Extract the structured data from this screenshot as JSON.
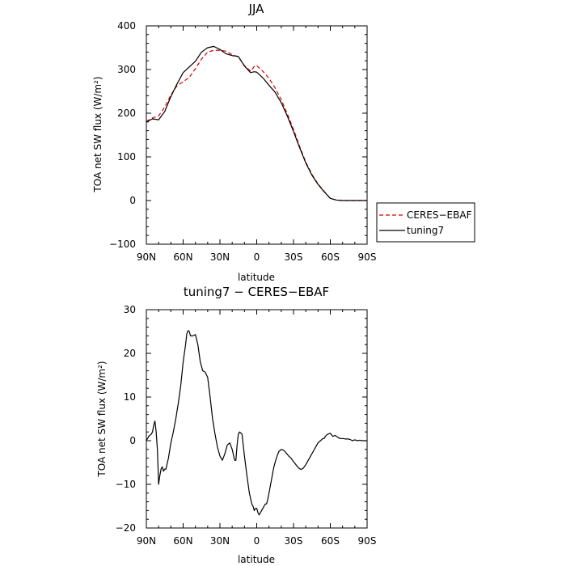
{
  "chart_data": [
    {
      "type": "line",
      "title": "JJA",
      "xlabel": "latitude",
      "ylabel": "TOA net SW flux (W/m²)",
      "xlim": [
        90,
        -90
      ],
      "ylim": [
        -100,
        400
      ],
      "x_ticks": [
        90,
        60,
        30,
        0,
        -30,
        -60,
        -90
      ],
      "x_tick_labels": [
        "90N",
        "60N",
        "30N",
        "0",
        "30S",
        "60S",
        "90S"
      ],
      "y_ticks": [
        -100,
        0,
        100,
        200,
        300,
        400
      ],
      "y_tick_labels": [
        "−100",
        "0",
        "100",
        "200",
        "300",
        "400"
      ],
      "legend": "outside-right",
      "series": [
        {
          "name": "CERES−EBAF",
          "color": "#dd0000",
          "dash": "dashed",
          "x": [
            90,
            85,
            80,
            75,
            70,
            65,
            60,
            55,
            50,
            45,
            40,
            35,
            30,
            25,
            20,
            15,
            10,
            5,
            2,
            0,
            -5,
            -10,
            -15,
            -20,
            -25,
            -30,
            -35,
            -40,
            -45,
            -50,
            -55,
            -60,
            -65,
            -70,
            -75,
            -80,
            -85,
            -90
          ],
          "y": [
            181,
            189,
            194,
            214,
            242,
            263,
            272,
            282,
            302,
            324,
            340,
            344,
            344,
            342,
            334,
            329,
            309,
            296,
            307,
            309,
            296,
            280,
            258,
            231,
            198,
            163,
            124,
            88,
            60,
            38,
            21,
            5,
            1,
            0,
            0,
            0,
            0,
            0
          ]
        },
        {
          "name": "tuning7",
          "color": "#000000",
          "dash": "solid",
          "x": [
            90,
            85,
            80,
            75,
            70,
            65,
            60,
            55,
            50,
            45,
            40,
            35,
            30,
            25,
            20,
            15,
            10,
            5,
            2,
            0,
            -5,
            -10,
            -15,
            -20,
            -25,
            -30,
            -35,
            -40,
            -45,
            -50,
            -55,
            -60,
            -65,
            -70,
            -75,
            -80,
            -85,
            -90
          ],
          "y": [
            180,
            187,
            185,
            204,
            238,
            267,
            293,
            306,
            319,
            340,
            350,
            353,
            346,
            336,
            332,
            330,
            308,
            293,
            295,
            294,
            281,
            264,
            248,
            224,
            193,
            158,
            121,
            86,
            58,
            37,
            20,
            5,
            1,
            0,
            0,
            0,
            0,
            0
          ]
        }
      ]
    },
    {
      "type": "line",
      "title": "tuning7 − CERES−EBAF",
      "xlabel": "latitude",
      "ylabel": "TOA net SW flux (W/m²)",
      "xlim": [
        90,
        -90
      ],
      "ylim": [
        -20,
        30
      ],
      "x_ticks": [
        90,
        60,
        30,
        0,
        -30,
        -60,
        -90
      ],
      "x_tick_labels": [
        "90N",
        "60N",
        "30N",
        "0",
        "30S",
        "60S",
        "90S"
      ],
      "y_ticks": [
        -20,
        -10,
        0,
        10,
        20,
        30
      ],
      "y_tick_labels": [
        "−20",
        "−10",
        "0",
        "10",
        "20",
        "30"
      ],
      "series": [
        {
          "color": "#000000",
          "dash": "solid",
          "x": [
            90,
            88,
            86,
            85,
            84,
            83,
            82,
            81,
            80,
            79,
            78,
            77,
            76,
            75,
            74,
            72,
            70,
            68,
            66,
            64,
            62,
            60,
            58,
            57,
            56,
            55,
            54,
            52,
            50,
            48,
            46,
            44,
            42,
            40,
            38,
            36,
            34,
            32,
            30,
            28,
            26,
            24,
            22,
            20,
            18,
            17,
            16,
            15,
            14,
            12,
            10,
            8,
            6,
            4,
            3,
            2,
            1,
            0,
            -1,
            -2,
            -3,
            -4,
            -5,
            -6,
            -7,
            -8,
            -9,
            -10,
            -12,
            -14,
            -16,
            -18,
            -20,
            -22,
            -24,
            -26,
            -28,
            -30,
            -32,
            -34,
            -36,
            -38,
            -40,
            -42,
            -44,
            -46,
            -48,
            -50,
            -52,
            -54,
            -55,
            -56,
            -57,
            -58,
            -60,
            -62,
            -64,
            -66,
            -68,
            -70,
            -72,
            -74,
            -76,
            -78,
            -80,
            -82,
            -84,
            -86,
            -88,
            -90
          ],
          "y": [
            0,
            1,
            1.5,
            2,
            3.5,
            4.5,
            2,
            -2,
            -10,
            -8,
            -6.5,
            -6,
            -7,
            -6.5,
            -6.5,
            -4,
            -0.5,
            2,
            5,
            8.5,
            12.5,
            18,
            22,
            24.5,
            25.2,
            25,
            24,
            24,
            24.3,
            22,
            18,
            16,
            15.7,
            14.5,
            10,
            5,
            1.5,
            -1.5,
            -3.5,
            -4.5,
            -3,
            -1,
            -0.5,
            -2,
            -4.5,
            -4.5,
            -1,
            1.5,
            2,
            1.5,
            -3.5,
            -8,
            -12,
            -14.5,
            -15,
            -16,
            -15.5,
            -15.5,
            -16.5,
            -17,
            -16.5,
            -16,
            -15.5,
            -15,
            -14.5,
            -14.5,
            -13.5,
            -12,
            -9,
            -6,
            -4,
            -2.5,
            -2,
            -2.2,
            -2.8,
            -3.5,
            -4,
            -4.8,
            -5.5,
            -6.2,
            -6.6,
            -6.3,
            -5.5,
            -4.5,
            -3.5,
            -2.5,
            -1.5,
            -0.5,
            0,
            0.5,
            0.5,
            1,
            1.3,
            1.5,
            1.7,
            1,
            1.2,
            0.8,
            0.5,
            0.5,
            0.4,
            0.4,
            0.3,
            0,
            0.2,
            0,
            0.1,
            0,
            0,
            0
          ]
        }
      ]
    }
  ]
}
